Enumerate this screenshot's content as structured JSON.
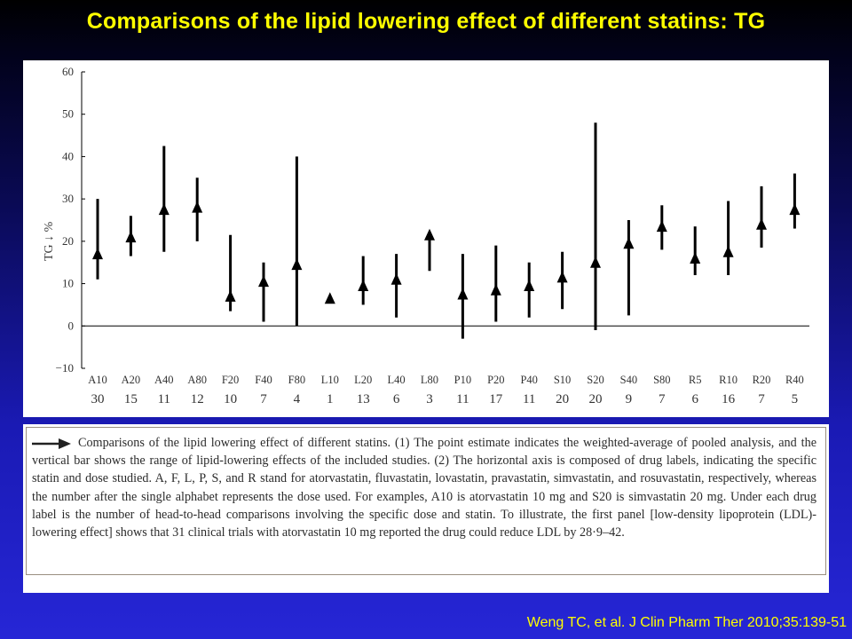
{
  "slide": {
    "title": "Comparisons of the lipid lowering effect of different statins: TG",
    "citation": "Weng TC, et al. J Clin Pharm Ther 2010;35:139-51"
  },
  "caption": {
    "text": "Comparisons of the lipid lowering effect of different statins. (1) The point estimate indicates the weighted-average of pooled analysis, and the vertical bar shows the range of lipid-lowering effects of the included studies. (2) The horizontal axis is composed of drug labels, indicating the specific statin and dose studied. A, F, L, P, S, and R stand for atorvastatin, fluvastatin, lovastatin, pravastatin, simvastatin, and rosuvastatin, respectively, whereas the number after the single alphabet represents the dose used. For examples, A10 is atorvastatin 10 mg and S20 is simvastatin 20 mg. Under each drug label is the number of head-to-head comparisons involving the specific dose and statin. To illustrate, the first panel [low-density lipoprotein (LDL)-lowering effect] shows that 31 clinical trials with atorvastatin 10 mg reported the drug could reduce LDL by 28·9–42."
  },
  "colors": {
    "title": "#ffff00",
    "citation": "#ffff00",
    "marks": "#000000"
  },
  "chart_data": {
    "type": "scatter",
    "title": "",
    "xlabel": "",
    "ylabel": "TG ↓ %",
    "ylim": [
      -10,
      60
    ],
    "yticks": [
      "−10",
      "0",
      "10",
      "20",
      "30",
      "40",
      "50",
      "60"
    ],
    "grid": false,
    "marker": "triangle",
    "error_bars": "range",
    "categories": [
      "A10",
      "A20",
      "A40",
      "A80",
      "F20",
      "F40",
      "F80",
      "L10",
      "L20",
      "L40",
      "L80",
      "P10",
      "P20",
      "P40",
      "S10",
      "S20",
      "S40",
      "S80",
      "R5",
      "R10",
      "R20",
      "R40"
    ],
    "comparisons": [
      "30",
      "15",
      "11",
      "12",
      "10",
      "7",
      "4",
      "1",
      "13",
      "6",
      "3",
      "11",
      "17",
      "11",
      "20",
      "20",
      "9",
      "7",
      "6",
      "16",
      "7",
      "5"
    ],
    "values": [
      17,
      21,
      27.5,
      28,
      7,
      10.5,
      14.5,
      6.5,
      9.5,
      11,
      21.5,
      7.5,
      8.5,
      9.5,
      11.5,
      15,
      19.5,
      23.5,
      16,
      17.5,
      24,
      27.5
    ],
    "low": [
      11,
      16.5,
      17.5,
      20,
      3.5,
      1,
      0,
      6.5,
      5,
      2,
      13,
      -3,
      1,
      2,
      4,
      -1,
      2.5,
      18,
      12,
      12,
      18.5,
      23
    ],
    "high": [
      30,
      26,
      42.5,
      35,
      21.5,
      15,
      40,
      6.5,
      16.5,
      17,
      21.5,
      17,
      19,
      15,
      17.5,
      48,
      25,
      28.5,
      23.5,
      29.5,
      33,
      36
    ]
  }
}
